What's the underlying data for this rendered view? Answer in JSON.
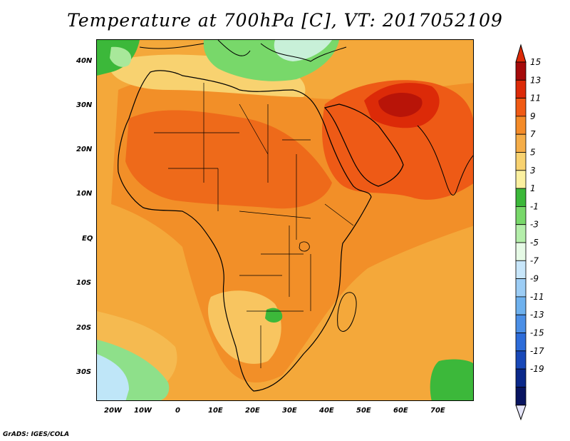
{
  "title": "Temperature at 700hPa [C], VT: 2017052109",
  "credit": "GrADS: IGES/COLA",
  "map": {
    "lon_labels": [
      "20W",
      "10W",
      "0",
      "10E",
      "20E",
      "30E",
      "40E",
      "50E",
      "60E",
      "70E"
    ],
    "lat_labels": [
      "40N",
      "30N",
      "20N",
      "10N",
      "EQ",
      "10S",
      "20S",
      "30S"
    ],
    "background_field_color": "#f4a83a"
  },
  "colorbar": {
    "levels": [
      "15",
      "13",
      "11",
      "9",
      "7",
      "5",
      "3",
      "1",
      "-1",
      "-3",
      "-5",
      "-7",
      "-9",
      "-11",
      "-13",
      "-15",
      "-17",
      "-19"
    ],
    "colors": [
      "#a50a0a",
      "#dc2a08",
      "#f05a14",
      "#f48b28",
      "#f5ad48",
      "#f8d270",
      "#fbf0a0",
      "#3cb83a",
      "#78d86a",
      "#b4eeaa",
      "#e6fae6",
      "#c8e6fa",
      "#9ccdf5",
      "#6eb1ee",
      "#4b8fe6",
      "#2d6cd9",
      "#1848b8",
      "#0a288a",
      "#081460"
    ],
    "top_arrow_color": "#dc2a08",
    "bottom_arrow_color": "#e6e6fa"
  }
}
